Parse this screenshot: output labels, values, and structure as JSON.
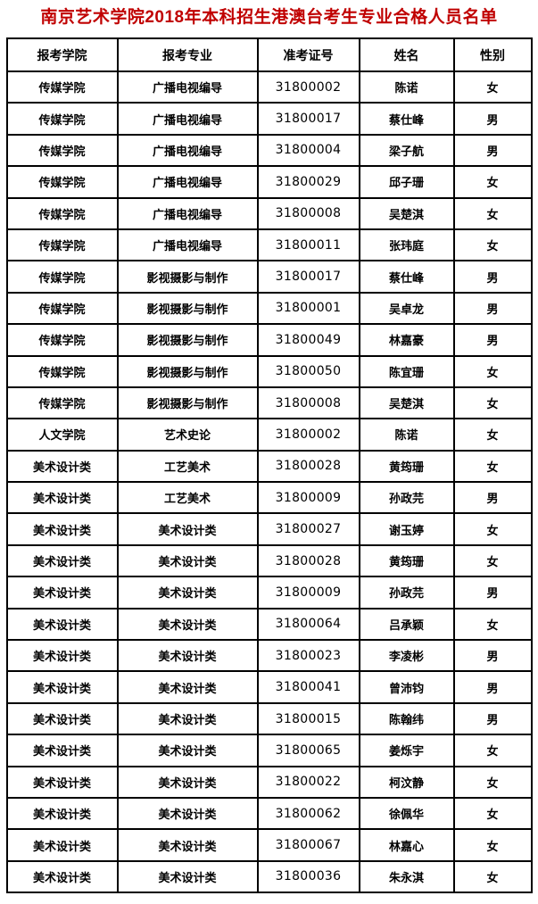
{
  "title": "南京艺术学院2018年本科招生港澳台考生专业合格人员名单",
  "colors": {
    "title": "#c00000",
    "border": "#000000",
    "background": "#ffffff"
  },
  "table": {
    "headers": [
      "报考学院",
      "报考专业",
      "准考证号",
      "姓名",
      "性别"
    ],
    "column_keys": [
      "college",
      "major",
      "ticket-number",
      "name",
      "gender"
    ],
    "rows": [
      [
        "传媒学院",
        "广播电视编导",
        "31800002",
        "陈诺",
        "女"
      ],
      [
        "传媒学院",
        "广播电视编导",
        "31800017",
        "蔡仕峰",
        "男"
      ],
      [
        "传媒学院",
        "广播电视编导",
        "31800004",
        "梁子航",
        "男"
      ],
      [
        "传媒学院",
        "广播电视编导",
        "31800029",
        "邱子珊",
        "女"
      ],
      [
        "传媒学院",
        "广播电视编导",
        "31800008",
        "吴楚淇",
        "女"
      ],
      [
        "传媒学院",
        "广播电视编导",
        "31800011",
        "张玮庭",
        "女"
      ],
      [
        "传媒学院",
        "影视摄影与制作",
        "31800017",
        "蔡仕峰",
        "男"
      ],
      [
        "传媒学院",
        "影视摄影与制作",
        "31800001",
        "吴卓龙",
        "男"
      ],
      [
        "传媒学院",
        "影视摄影与制作",
        "31800049",
        "林嘉豪",
        "男"
      ],
      [
        "传媒学院",
        "影视摄影与制作",
        "31800050",
        "陈宜珊",
        "女"
      ],
      [
        "传媒学院",
        "影视摄影与制作",
        "31800008",
        "吴楚淇",
        "女"
      ],
      [
        "人文学院",
        "艺术史论",
        "31800002",
        "陈诺",
        "女"
      ],
      [
        "美术设计类",
        "工艺美术",
        "31800028",
        "黄筠珊",
        "女"
      ],
      [
        "美术设计类",
        "工艺美术",
        "31800009",
        "孙政芫",
        "男"
      ],
      [
        "美术设计类",
        "美术设计类",
        "31800027",
        "谢玉婷",
        "女"
      ],
      [
        "美术设计类",
        "美术设计类",
        "31800028",
        "黄筠珊",
        "女"
      ],
      [
        "美术设计类",
        "美术设计类",
        "31800009",
        "孙政芫",
        "男"
      ],
      [
        "美术设计类",
        "美术设计类",
        "31800064",
        "吕承颖",
        "女"
      ],
      [
        "美术设计类",
        "美术设计类",
        "31800023",
        "李凌彬",
        "男"
      ],
      [
        "美术设计类",
        "美术设计类",
        "31800041",
        "曾沛钧",
        "男"
      ],
      [
        "美术设计类",
        "美术设计类",
        "31800015",
        "陈翰纬",
        "男"
      ],
      [
        "美术设计类",
        "美术设计类",
        "31800065",
        "姜烁宇",
        "女"
      ],
      [
        "美术设计类",
        "美术设计类",
        "31800022",
        "柯汶静",
        "女"
      ],
      [
        "美术设计类",
        "美术设计类",
        "31800062",
        "徐佩华",
        "女"
      ],
      [
        "美术设计类",
        "美术设计类",
        "31800067",
        "林嘉心",
        "女"
      ],
      [
        "美术设计类",
        "美术设计类",
        "31800036",
        "朱永淇",
        "女"
      ]
    ]
  }
}
